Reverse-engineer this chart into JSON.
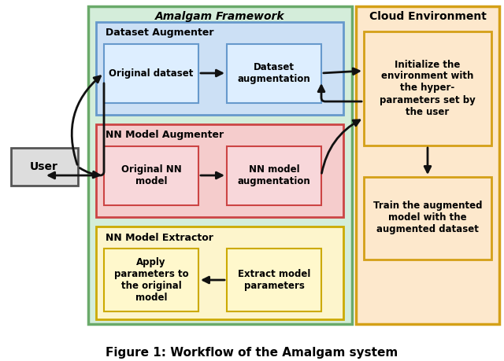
{
  "bg_color": "#ffffff",
  "amalgam_bg": "#d4edda",
  "amalgam_border": "#6aaa6a",
  "cloud_bg": "#fde8cc",
  "cloud_border": "#d4a017",
  "dataset_aug_bg": "#cce0f5",
  "dataset_aug_border": "#6699cc",
  "nn_aug_bg": "#f5cccc",
  "nn_aug_border": "#cc4444",
  "nn_ext_bg": "#fdf5cc",
  "nn_ext_border": "#ccaa00",
  "inner_blue_bg": "#ddeeff",
  "inner_blue_border": "#6699cc",
  "inner_red_bg": "#f8d7da",
  "inner_red_border": "#cc4444",
  "inner_yellow_bg": "#fff8cc",
  "inner_yellow_border": "#ccaa00",
  "cloud_inner_bg": "#fde8cc",
  "cloud_inner_border": "#d4a017",
  "user_bg": "#dddddd",
  "user_border": "#555555",
  "arrow_color": "#111111",
  "amalgam_label": "Amalgam Framework",
  "cloud_label": "Cloud Environment",
  "dataset_aug_label": "Dataset Augmenter",
  "nn_aug_label": "NN Model Augmenter",
  "nn_ext_label": "NN Model Extractor",
  "orig_dataset": "Original dataset",
  "dataset_aug": "Dataset\naugmentation",
  "orig_nn": "Original NN\nmodel",
  "nn_aug": "NN model\naugmentation",
  "apply_params": "Apply\nparameters to\nthe original\nmodel",
  "extract_params": "Extract model\nparameters",
  "init_cloud": "Initialize the\nenvironment with\nthe hyper-\nparameters set by\nthe user",
  "train_cloud": "Train the augmented\nmodel with the\naugmented dataset",
  "user_label": "User",
  "caption": "Figure 1: Workflow of the Amalgam system"
}
